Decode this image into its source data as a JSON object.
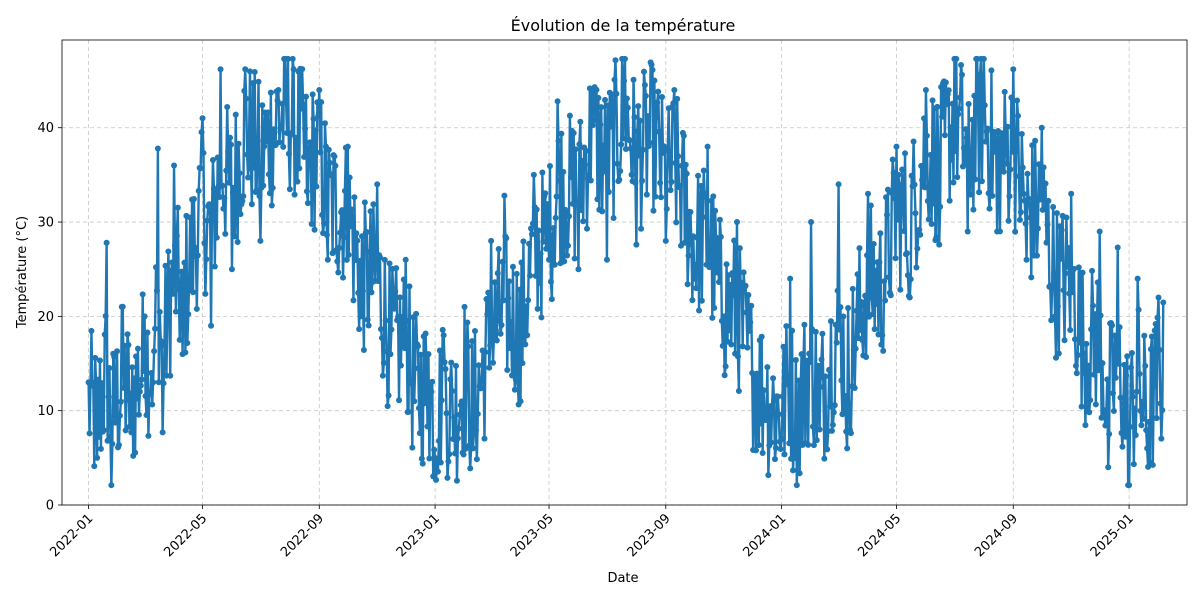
{
  "chart_data": {
    "type": "line",
    "title": "Évolution de la température",
    "xlabel": "Date",
    "ylabel": "Température (°C)",
    "x_start": "2022-01-01",
    "x_end": "2025-02-06",
    "xlim": [
      "2021-12-04",
      "2025-03-03"
    ],
    "ylim": [
      0,
      49.3
    ],
    "x_ticks": [
      "2022-01",
      "2022-05",
      "2022-09",
      "2023-01",
      "2023-05",
      "2023-09",
      "2024-01",
      "2024-05",
      "2024-09",
      "2025-01"
    ],
    "y_ticks": [
      0,
      10,
      20,
      30,
      40
    ],
    "grid": true,
    "marker": "circle",
    "series_color": "#1f77b4",
    "series": [
      {
        "y_range": [
          2.1,
          47.3
        ],
        "values": [
          {
            "x": "2022-01-01",
            "y": 13
          },
          {
            "x": "2022-01-10",
            "y": 5
          },
          {
            "x": "2022-01-20",
            "y": 27.8
          },
          {
            "x": "2022-01-25",
            "y": 2.1
          },
          {
            "x": "2022-02-05",
            "y": 21
          },
          {
            "x": "2022-02-15",
            "y": 7.7
          },
          {
            "x": "2022-03-01",
            "y": 20
          },
          {
            "x": "2022-03-10",
            "y": 13
          },
          {
            "x": "2022-03-15",
            "y": 37.8
          },
          {
            "x": "2022-03-20",
            "y": 7.7
          },
          {
            "x": "2022-04-01",
            "y": 36
          },
          {
            "x": "2022-04-10",
            "y": 16
          },
          {
            "x": "2022-05-01",
            "y": 41
          },
          {
            "x": "2022-05-10",
            "y": 19
          },
          {
            "x": "2022-05-20",
            "y": 46.2
          },
          {
            "x": "2022-06-01",
            "y": 25
          },
          {
            "x": "2022-06-15",
            "y": 46.2
          },
          {
            "x": "2022-07-01",
            "y": 28
          },
          {
            "x": "2022-07-20",
            "y": 44
          },
          {
            "x": "2022-08-05",
            "y": 46.2
          },
          {
            "x": "2022-08-20",
            "y": 32
          },
          {
            "x": "2022-09-01",
            "y": 44
          },
          {
            "x": "2022-09-10",
            "y": 26
          },
          {
            "x": "2022-10-01",
            "y": 38
          },
          {
            "x": "2022-10-15",
            "y": 20
          },
          {
            "x": "2022-11-01",
            "y": 34
          },
          {
            "x": "2022-11-15",
            "y": 16
          },
          {
            "x": "2022-12-01",
            "y": 26
          },
          {
            "x": "2022-12-10",
            "y": 11
          },
          {
            "x": "2022-12-25",
            "y": 16
          },
          {
            "x": "2023-01-01",
            "y": 5
          },
          {
            "x": "2023-01-10",
            "y": 18
          },
          {
            "x": "2023-01-20",
            "y": 7
          },
          {
            "x": "2023-02-01",
            "y": 21
          },
          {
            "x": "2023-02-10",
            "y": 6
          },
          {
            "x": "2023-03-01",
            "y": 28
          },
          {
            "x": "2023-03-15",
            "y": 32.8
          },
          {
            "x": "2023-04-01",
            "y": 11
          },
          {
            "x": "2023-04-15",
            "y": 35
          },
          {
            "x": "2023-05-01",
            "y": 26
          },
          {
            "x": "2023-05-10",
            "y": 42.8
          },
          {
            "x": "2023-06-01",
            "y": 25
          },
          {
            "x": "2023-06-15",
            "y": 44
          },
          {
            "x": "2023-07-01",
            "y": 26
          },
          {
            "x": "2023-07-20",
            "y": 47.3
          },
          {
            "x": "2023-08-01",
            "y": 27.6
          },
          {
            "x": "2023-08-20",
            "y": 45
          },
          {
            "x": "2023-09-01",
            "y": 28
          },
          {
            "x": "2023-09-10",
            "y": 44
          },
          {
            "x": "2023-10-01",
            "y": 24
          },
          {
            "x": "2023-10-15",
            "y": 38
          },
          {
            "x": "2023-11-01",
            "y": 20
          },
          {
            "x": "2023-11-15",
            "y": 30
          },
          {
            "x": "2023-12-01",
            "y": 14
          },
          {
            "x": "2023-12-15",
            "y": 9
          },
          {
            "x": "2024-01-01",
            "y": 7
          },
          {
            "x": "2024-01-10",
            "y": 24
          },
          {
            "x": "2024-01-15",
            "y": 5
          },
          {
            "x": "2024-02-01",
            "y": 30
          },
          {
            "x": "2024-02-10",
            "y": 8
          },
          {
            "x": "2024-03-01",
            "y": 34
          },
          {
            "x": "2024-03-10",
            "y": 6
          },
          {
            "x": "2024-04-01",
            "y": 33
          },
          {
            "x": "2024-04-15",
            "y": 17
          },
          {
            "x": "2024-05-01",
            "y": 38
          },
          {
            "x": "2024-05-15",
            "y": 22
          },
          {
            "x": "2024-06-01",
            "y": 44
          },
          {
            "x": "2024-06-15",
            "y": 27.6
          },
          {
            "x": "2024-07-01",
            "y": 47.3
          },
          {
            "x": "2024-07-15",
            "y": 29
          },
          {
            "x": "2024-08-01",
            "y": 47.3
          },
          {
            "x": "2024-08-15",
            "y": 29
          },
          {
            "x": "2024-09-01",
            "y": 46.2
          },
          {
            "x": "2024-09-15",
            "y": 26
          },
          {
            "x": "2024-10-01",
            "y": 40
          },
          {
            "x": "2024-10-15",
            "y": 20
          },
          {
            "x": "2024-11-01",
            "y": 33
          },
          {
            "x": "2024-11-15",
            "y": 14
          },
          {
            "x": "2024-12-01",
            "y": 29
          },
          {
            "x": "2024-12-10",
            "y": 4
          },
          {
            "x": "2024-12-20",
            "y": 27.3
          },
          {
            "x": "2025-01-01",
            "y": 2.1
          },
          {
            "x": "2025-01-10",
            "y": 24
          },
          {
            "x": "2025-01-20",
            "y": 6
          },
          {
            "x": "2025-02-01",
            "y": 22
          }
        ]
      }
    ]
  }
}
